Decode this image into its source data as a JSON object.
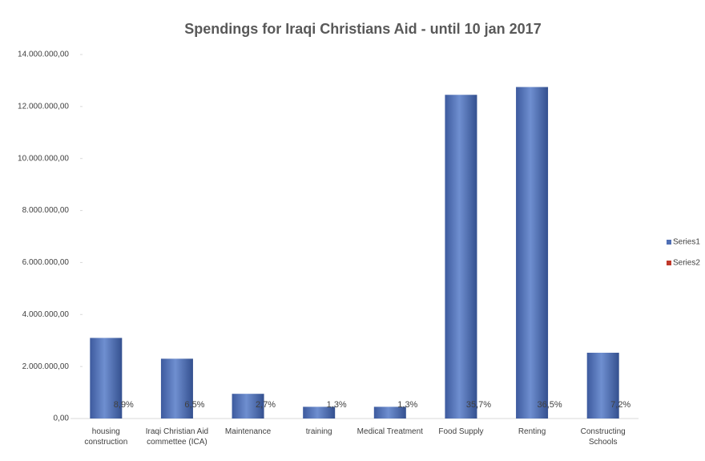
{
  "chart_data": {
    "type": "bar",
    "title": "Spendings for Iraqi Christians Aid - until 10 jan 2017",
    "categories": [
      "housing construction",
      "Iraqi Christian Aid commettee (ICA)",
      "Maintenance",
      "training",
      "Medical Treatment",
      "Food Supply",
      "Renting",
      "Constructing Schools"
    ],
    "series": [
      {
        "name": "Series1",
        "color": "#4f6fb5",
        "values": [
          3100000,
          2300000,
          950000,
          450000,
          450000,
          12450000,
          12750000,
          2530000
        ]
      },
      {
        "name": "Series2",
        "color": "#c0392b",
        "values": [
          8.9,
          6.5,
          2.7,
          1.3,
          1.3,
          35.7,
          36.5,
          7.2
        ],
        "value_labels": [
          "8,9%",
          "6,5%",
          "2,7%",
          "1,3%",
          "1,3%",
          "35,7%",
          "36,5%",
          "7,2%"
        ]
      }
    ],
    "ylim": [
      0,
      14000000
    ],
    "yticks": [
      {
        "value": 0,
        "label": "0,00"
      },
      {
        "value": 2000000,
        "label": "2.000.000,00"
      },
      {
        "value": 4000000,
        "label": "4.000.000,00"
      },
      {
        "value": 6000000,
        "label": "6.000.000,00"
      },
      {
        "value": 8000000,
        "label": "8.000.000,00"
      },
      {
        "value": 10000000,
        "label": "10.000.000,00"
      },
      {
        "value": 12000000,
        "label": "12.000.000,00"
      },
      {
        "value": 14000000,
        "label": "14.000.000,00"
      }
    ],
    "legend": "right"
  }
}
